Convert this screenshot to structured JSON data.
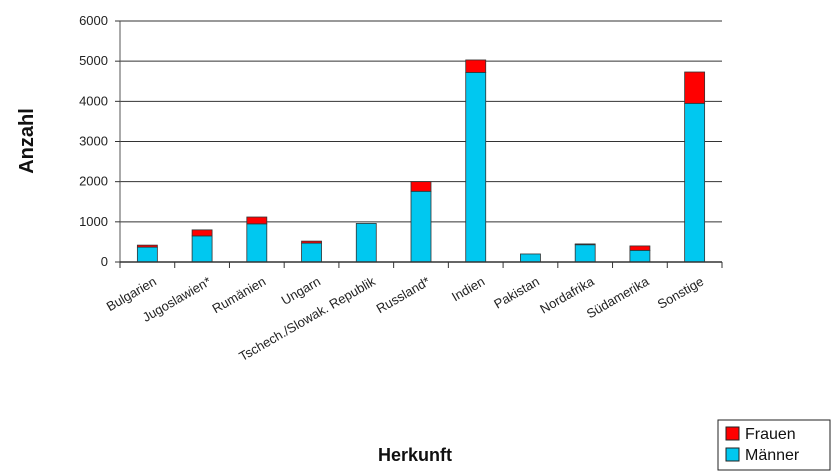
{
  "chart_data": {
    "type": "bar",
    "stacked": true,
    "title": "",
    "xlabel": "Herkunft",
    "ylabel": "Anzahl",
    "ylim": [
      0,
      6000
    ],
    "yticks": [
      "0",
      "1000",
      "2000",
      "3000",
      "4000",
      "5000",
      "6000"
    ],
    "grid": true,
    "legend_position": "bottom-right",
    "categories": [
      "Bulgarien",
      "Jugoslawien*",
      "Rumänien",
      "Ungarn",
      "Tschech./Slowak. Republik",
      "Russland*",
      "Indien",
      "Pakistan",
      "Nordafrika",
      "Südamerika",
      "Sonstige"
    ],
    "series": [
      {
        "name": "Männer",
        "color": "#00c8f0",
        "values": [
          370,
          650,
          950,
          470,
          960,
          1760,
          4720,
          200,
          430,
          290,
          3950
        ]
      },
      {
        "name": "Frauen",
        "color": "#ff0000",
        "values": [
          50,
          150,
          170,
          50,
          0,
          240,
          310,
          0,
          20,
          110,
          780
        ]
      }
    ]
  }
}
